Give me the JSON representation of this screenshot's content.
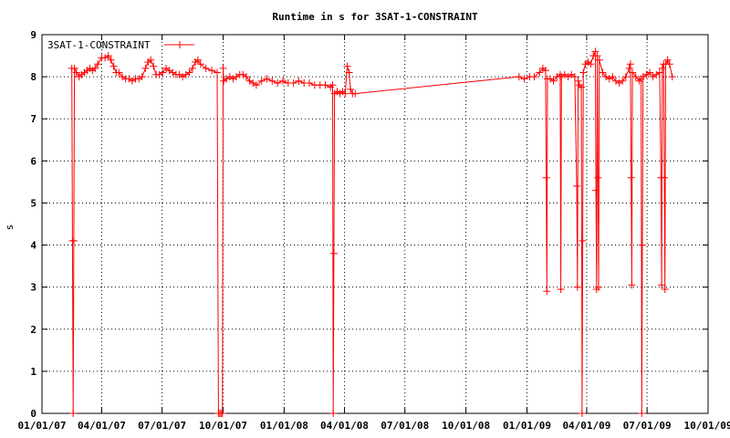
{
  "chart_data": {
    "type": "line",
    "title": "Runtime in s for 3SAT-1-CONSTRAINT",
    "ylabel": "s",
    "xlabel": "",
    "xlim": [
      "2007-01-01",
      "2009-10-01"
    ],
    "ylim": [
      0,
      9
    ],
    "x_ticks": [
      "01/01/07",
      "04/01/07",
      "07/01/07",
      "10/01/07",
      "01/01/08",
      "04/01/08",
      "07/01/08",
      "10/01/08",
      "01/01/09",
      "04/01/09",
      "07/01/09",
      "10/01/09"
    ],
    "y_ticks": [
      "0",
      "1",
      "2",
      "3",
      "4",
      "5",
      "6",
      "7",
      "8",
      "9"
    ],
    "grid": true,
    "legend": "top-left",
    "series": [
      {
        "name": "3SAT-1-CONSTRAINT",
        "color": "#ff0000",
        "marker": "plus",
        "points": [
          [
            "2007-02-15",
            8.2
          ],
          [
            "2007-02-16",
            4.1
          ],
          [
            "2007-02-17",
            0.0
          ],
          [
            "2007-02-18",
            4.1
          ],
          [
            "2007-02-19",
            8.2
          ],
          [
            "2007-02-22",
            8.1
          ],
          [
            "2007-02-26",
            8.0
          ],
          [
            "2007-03-02",
            8.05
          ],
          [
            "2007-03-06",
            8.1
          ],
          [
            "2007-03-10",
            8.15
          ],
          [
            "2007-03-14",
            8.2
          ],
          [
            "2007-03-18",
            8.15
          ],
          [
            "2007-03-22",
            8.2
          ],
          [
            "2007-03-26",
            8.3
          ],
          [
            "2007-04-01",
            8.45
          ],
          [
            "2007-04-06",
            8.45
          ],
          [
            "2007-04-11",
            8.5
          ],
          [
            "2007-04-15",
            8.4
          ],
          [
            "2007-04-19",
            8.25
          ],
          [
            "2007-04-23",
            8.1
          ],
          [
            "2007-04-27",
            8.1
          ],
          [
            "2007-05-02",
            8.0
          ],
          [
            "2007-05-07",
            7.95
          ],
          [
            "2007-05-12",
            7.95
          ],
          [
            "2007-05-17",
            7.9
          ],
          [
            "2007-05-22",
            7.95
          ],
          [
            "2007-05-27",
            7.95
          ],
          [
            "2007-06-01",
            8.0
          ],
          [
            "2007-06-06",
            8.2
          ],
          [
            "2007-06-10",
            8.35
          ],
          [
            "2007-06-14",
            8.4
          ],
          [
            "2007-06-18",
            8.25
          ],
          [
            "2007-06-22",
            8.05
          ],
          [
            "2007-06-27",
            8.05
          ],
          [
            "2007-07-02",
            8.1
          ],
          [
            "2007-07-07",
            8.2
          ],
          [
            "2007-07-12",
            8.15
          ],
          [
            "2007-07-17",
            8.1
          ],
          [
            "2007-07-22",
            8.05
          ],
          [
            "2007-07-27",
            8.05
          ],
          [
            "2007-08-01",
            8.0
          ],
          [
            "2007-08-06",
            8.05
          ],
          [
            "2007-08-11",
            8.1
          ],
          [
            "2007-08-16",
            8.2
          ],
          [
            "2007-08-20",
            8.35
          ],
          [
            "2007-08-24",
            8.4
          ],
          [
            "2007-08-28",
            8.3
          ],
          [
            "2007-09-05",
            8.2
          ],
          [
            "2007-09-14",
            8.15
          ],
          [
            "2007-09-22",
            8.1
          ],
          [
            "2007-09-24",
            0.0
          ],
          [
            "2007-09-26",
            0.0
          ],
          [
            "2007-09-28",
            0.0
          ],
          [
            "2007-09-30",
            0.0
          ],
          [
            "2007-10-01",
            8.2
          ],
          [
            "2007-10-02",
            7.9
          ],
          [
            "2007-10-06",
            7.95
          ],
          [
            "2007-10-11",
            8.0
          ],
          [
            "2007-10-16",
            7.95
          ],
          [
            "2007-10-21",
            8.0
          ],
          [
            "2007-10-26",
            8.05
          ],
          [
            "2007-10-31",
            8.05
          ],
          [
            "2007-11-05",
            8.0
          ],
          [
            "2007-11-10",
            7.9
          ],
          [
            "2007-11-15",
            7.85
          ],
          [
            "2007-11-20",
            7.8
          ],
          [
            "2007-11-28",
            7.9
          ],
          [
            "2007-12-06",
            7.95
          ],
          [
            "2007-12-14",
            7.9
          ],
          [
            "2007-12-22",
            7.85
          ],
          [
            "2007-12-30",
            7.9
          ],
          [
            "2008-01-07",
            7.85
          ],
          [
            "2008-01-15",
            7.85
          ],
          [
            "2008-01-23",
            7.9
          ],
          [
            "2008-01-31",
            7.85
          ],
          [
            "2008-02-08",
            7.85
          ],
          [
            "2008-02-16",
            7.8
          ],
          [
            "2008-02-24",
            7.8
          ],
          [
            "2008-03-03",
            7.8
          ],
          [
            "2008-03-11",
            7.75
          ],
          [
            "2008-03-14",
            7.8
          ],
          [
            "2008-03-15",
            0.0
          ],
          [
            "2008-03-16",
            3.8
          ],
          [
            "2008-03-17",
            7.6
          ],
          [
            "2008-03-21",
            7.65
          ],
          [
            "2008-03-25",
            7.6
          ],
          [
            "2008-03-29",
            7.65
          ],
          [
            "2008-04-02",
            7.6
          ],
          [
            "2008-04-05",
            8.25
          ],
          [
            "2008-04-08",
            8.1
          ],
          [
            "2008-04-10",
            7.7
          ],
          [
            "2008-04-13",
            7.6
          ],
          [
            "2008-04-17",
            7.6
          ],
          [
            "2008-12-20",
            8.0
          ],
          [
            "2008-12-28",
            7.95
          ],
          [
            "2009-01-05",
            8.0
          ],
          [
            "2009-01-12",
            8.0
          ],
          [
            "2009-01-20",
            8.1
          ],
          [
            "2009-01-25",
            8.2
          ],
          [
            "2009-01-29",
            8.15
          ],
          [
            "2009-01-30",
            5.6
          ],
          [
            "2009-01-31",
            2.9
          ],
          [
            "2009-02-01",
            7.95
          ],
          [
            "2009-02-05",
            7.95
          ],
          [
            "2009-02-10",
            7.9
          ],
          [
            "2009-02-15",
            8.0
          ],
          [
            "2009-02-20",
            8.05
          ],
          [
            "2009-02-21",
            2.95
          ],
          [
            "2009-02-22",
            8.0
          ],
          [
            "2009-02-27",
            8.05
          ],
          [
            "2009-03-04",
            8.0
          ],
          [
            "2009-03-09",
            8.05
          ],
          [
            "2009-03-14",
            8.0
          ],
          [
            "2009-03-17",
            5.4
          ],
          [
            "2009-03-18",
            3.0
          ],
          [
            "2009-03-19",
            7.9
          ],
          [
            "2009-03-21",
            7.8
          ],
          [
            "2009-03-24",
            7.75
          ],
          [
            "2009-03-25",
            0.0
          ],
          [
            "2009-03-26",
            4.1
          ],
          [
            "2009-03-27",
            8.1
          ],
          [
            "2009-03-30",
            8.3
          ],
          [
            "2009-04-03",
            8.35
          ],
          [
            "2009-04-07",
            8.3
          ],
          [
            "2009-04-11",
            8.5
          ],
          [
            "2009-04-14",
            8.6
          ],
          [
            "2009-04-15",
            5.3
          ],
          [
            "2009-04-16",
            2.95
          ],
          [
            "2009-04-17",
            8.5
          ],
          [
            "2009-04-18",
            5.6
          ],
          [
            "2009-04-19",
            3.0
          ],
          [
            "2009-04-20",
            8.4
          ],
          [
            "2009-04-25",
            8.1
          ],
          [
            "2009-04-30",
            8.0
          ],
          [
            "2009-05-05",
            7.95
          ],
          [
            "2009-05-10",
            8.0
          ],
          [
            "2009-05-15",
            7.9
          ],
          [
            "2009-05-20",
            7.85
          ],
          [
            "2009-05-25",
            7.9
          ],
          [
            "2009-05-30",
            8.0
          ],
          [
            "2009-06-04",
            8.2
          ],
          [
            "2009-06-06",
            8.3
          ],
          [
            "2009-06-07",
            5.6
          ],
          [
            "2009-06-08",
            3.05
          ],
          [
            "2009-06-09",
            8.1
          ],
          [
            "2009-06-14",
            8.0
          ],
          [
            "2009-06-19",
            7.9
          ],
          [
            "2009-06-22",
            7.95
          ],
          [
            "2009-06-23",
            0.0
          ],
          [
            "2009-06-24",
            4.0
          ],
          [
            "2009-06-25",
            8.0
          ],
          [
            "2009-06-30",
            8.05
          ],
          [
            "2009-07-05",
            8.1
          ],
          [
            "2009-07-10",
            8.0
          ],
          [
            "2009-07-15",
            8.05
          ],
          [
            "2009-07-20",
            8.1
          ],
          [
            "2009-07-22",
            5.6
          ],
          [
            "2009-07-23",
            3.05
          ],
          [
            "2009-07-24",
            8.2
          ],
          [
            "2009-07-26",
            8.3
          ],
          [
            "2009-07-27",
            5.6
          ],
          [
            "2009-07-28",
            2.95
          ],
          [
            "2009-07-29",
            8.3
          ],
          [
            "2009-08-01",
            8.4
          ],
          [
            "2009-08-04",
            8.3
          ],
          [
            "2009-08-08",
            8.0
          ]
        ]
      }
    ]
  }
}
